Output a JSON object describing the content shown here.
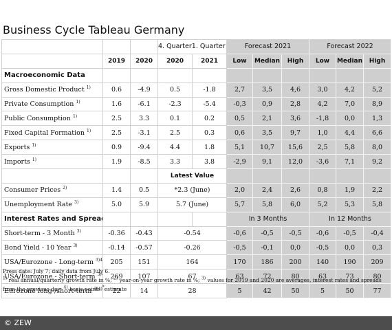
{
  "title": "Business Cycle Tableau Germany",
  "header": {
    "quarter_pre": "4. Quarter",
    "quarter_post": "1. Quarter",
    "forecast_2021": "Forecast 2021",
    "forecast_2022": "Forecast 2022",
    "cols": [
      "2019",
      "2020",
      "2020",
      "2021",
      "Low",
      "Median",
      "High",
      "Low",
      "Median",
      "High"
    ]
  },
  "sections": {
    "macro": "Macroeconomic Data",
    "rates": "Interest Rates and Spreads"
  },
  "macro_rows": [
    {
      "label": "Gross Domestic Product",
      "sup": "1)",
      "vals": [
        "0.6",
        "-4.9",
        "0.5",
        "-1.8",
        "2,7",
        "3,5",
        "4,6",
        "3,0",
        "4,2",
        "5,2"
      ]
    },
    {
      "label": "Private Consumption",
      "sup": "1)",
      "vals": [
        "1.6",
        "-6.1",
        "-2.3",
        "-5.4",
        "-0,3",
        "0,9",
        "2,8",
        "4,2",
        "7,0",
        "8,9"
      ]
    },
    {
      "label": "Public Consumption",
      "sup": "1)",
      "vals": [
        "2.5",
        "3.3",
        "0.1",
        "0.2",
        "0,5",
        "2,1",
        "3,6",
        "-1,8",
        "0,0",
        "1,3"
      ]
    },
    {
      "label": "Fixed Capital Formation",
      "sup": "1)",
      "vals": [
        "2.5",
        "-3.1",
        "2.5",
        "0.3",
        "0,6",
        "3,5",
        "9,7",
        "1,0",
        "4,4",
        "6,6"
      ]
    },
    {
      "label": "Exports",
      "sup": "1)",
      "vals": [
        "0.9",
        "-9.4",
        "4.4",
        "1.8",
        "5,1",
        "10,7",
        "15,6",
        "2,5",
        "5,8",
        "8,0"
      ]
    },
    {
      "label": "Imports",
      "sup": "1)",
      "vals": [
        "1.9",
        "-8.5",
        "3.3",
        "3.8",
        "-2,9",
        "9,1",
        "12,0",
        "-3,6",
        "7,1",
        "9,2"
      ]
    }
  ],
  "latest_value": "Latest Value",
  "price_rows": [
    {
      "label": "Consumer Prices",
      "sup": "2)",
      "v2019": "1.4",
      "v2020": "0.5",
      "latest": "*2.3 (June)",
      "fc": [
        "2,0",
        "2,4",
        "2,6",
        "0,8",
        "1,9",
        "2,2"
      ]
    },
    {
      "label": "Unemployment Rate",
      "sup": "3)",
      "v2019": "5.0",
      "v2020": "5.9",
      "latest": "5.7 (June)",
      "fc": [
        "5,7",
        "5,8",
        "6,0",
        "5,2",
        "5,3",
        "5,8"
      ]
    }
  ],
  "horizon": {
    "h3": "In 3 Months",
    "h12": "In 12 Months"
  },
  "rate_rows": [
    {
      "label": "Short-term - 3 Month",
      "sup": "3)",
      "v2019": "-0.36",
      "v2020": "-0.43",
      "latest": "-0.54",
      "fc": [
        "-0,6",
        "-0,5",
        "-0,5",
        "-0,6",
        "-0,5",
        "-0,4"
      ]
    },
    {
      "label": "Bond Yield - 10 Year",
      "sup": "3)",
      "v2019": "-0.14",
      "v2020": "-0.57",
      "latest": "-0.26",
      "fc": [
        "-0,5",
        "-0,1",
        "0,0",
        "-0,5",
        "0,0",
        "0,3"
      ]
    },
    {
      "label": "USA/Eurozone - Long-term",
      "sup": "3)4)",
      "v2019": "205",
      "v2020": "151",
      "latest": "164",
      "fc": [
        "170",
        "186",
        "200",
        "140",
        "190",
        "209"
      ]
    },
    {
      "label": "USA/Eurozone - Short-term",
      "sup": "3)4)",
      "v2019": "269",
      "v2020": "107",
      "latest": "67",
      "fc": [
        "63",
        "72",
        "80",
        "63",
        "73",
        "80"
      ]
    },
    {
      "label": "Eurozone long-/short-term",
      "sup": "3)4)",
      "v2019": "22",
      "v2020": "14",
      "latest": "28",
      "fc": [
        "5",
        "42",
        "50",
        "5",
        "50",
        "77"
      ]
    }
  ],
  "notes": {
    "press": "Press date: July 7; daily data from July 6.",
    "n1_sup": "1)",
    "n1": " real annual/quarterly growth rate in %;",
    "n2_sup": "2)",
    "n2": " year-on-year growth rate in %;",
    "n3_sup": "3)",
    "n3": " values for 2019 and 2020 are averages, interest rates and spreads from the previous day;",
    "n4_sup": "4)",
    "n4": " basis points",
    "n5_sup": "*",
    "n5": "estimate"
  },
  "footer": "© ZEW"
}
